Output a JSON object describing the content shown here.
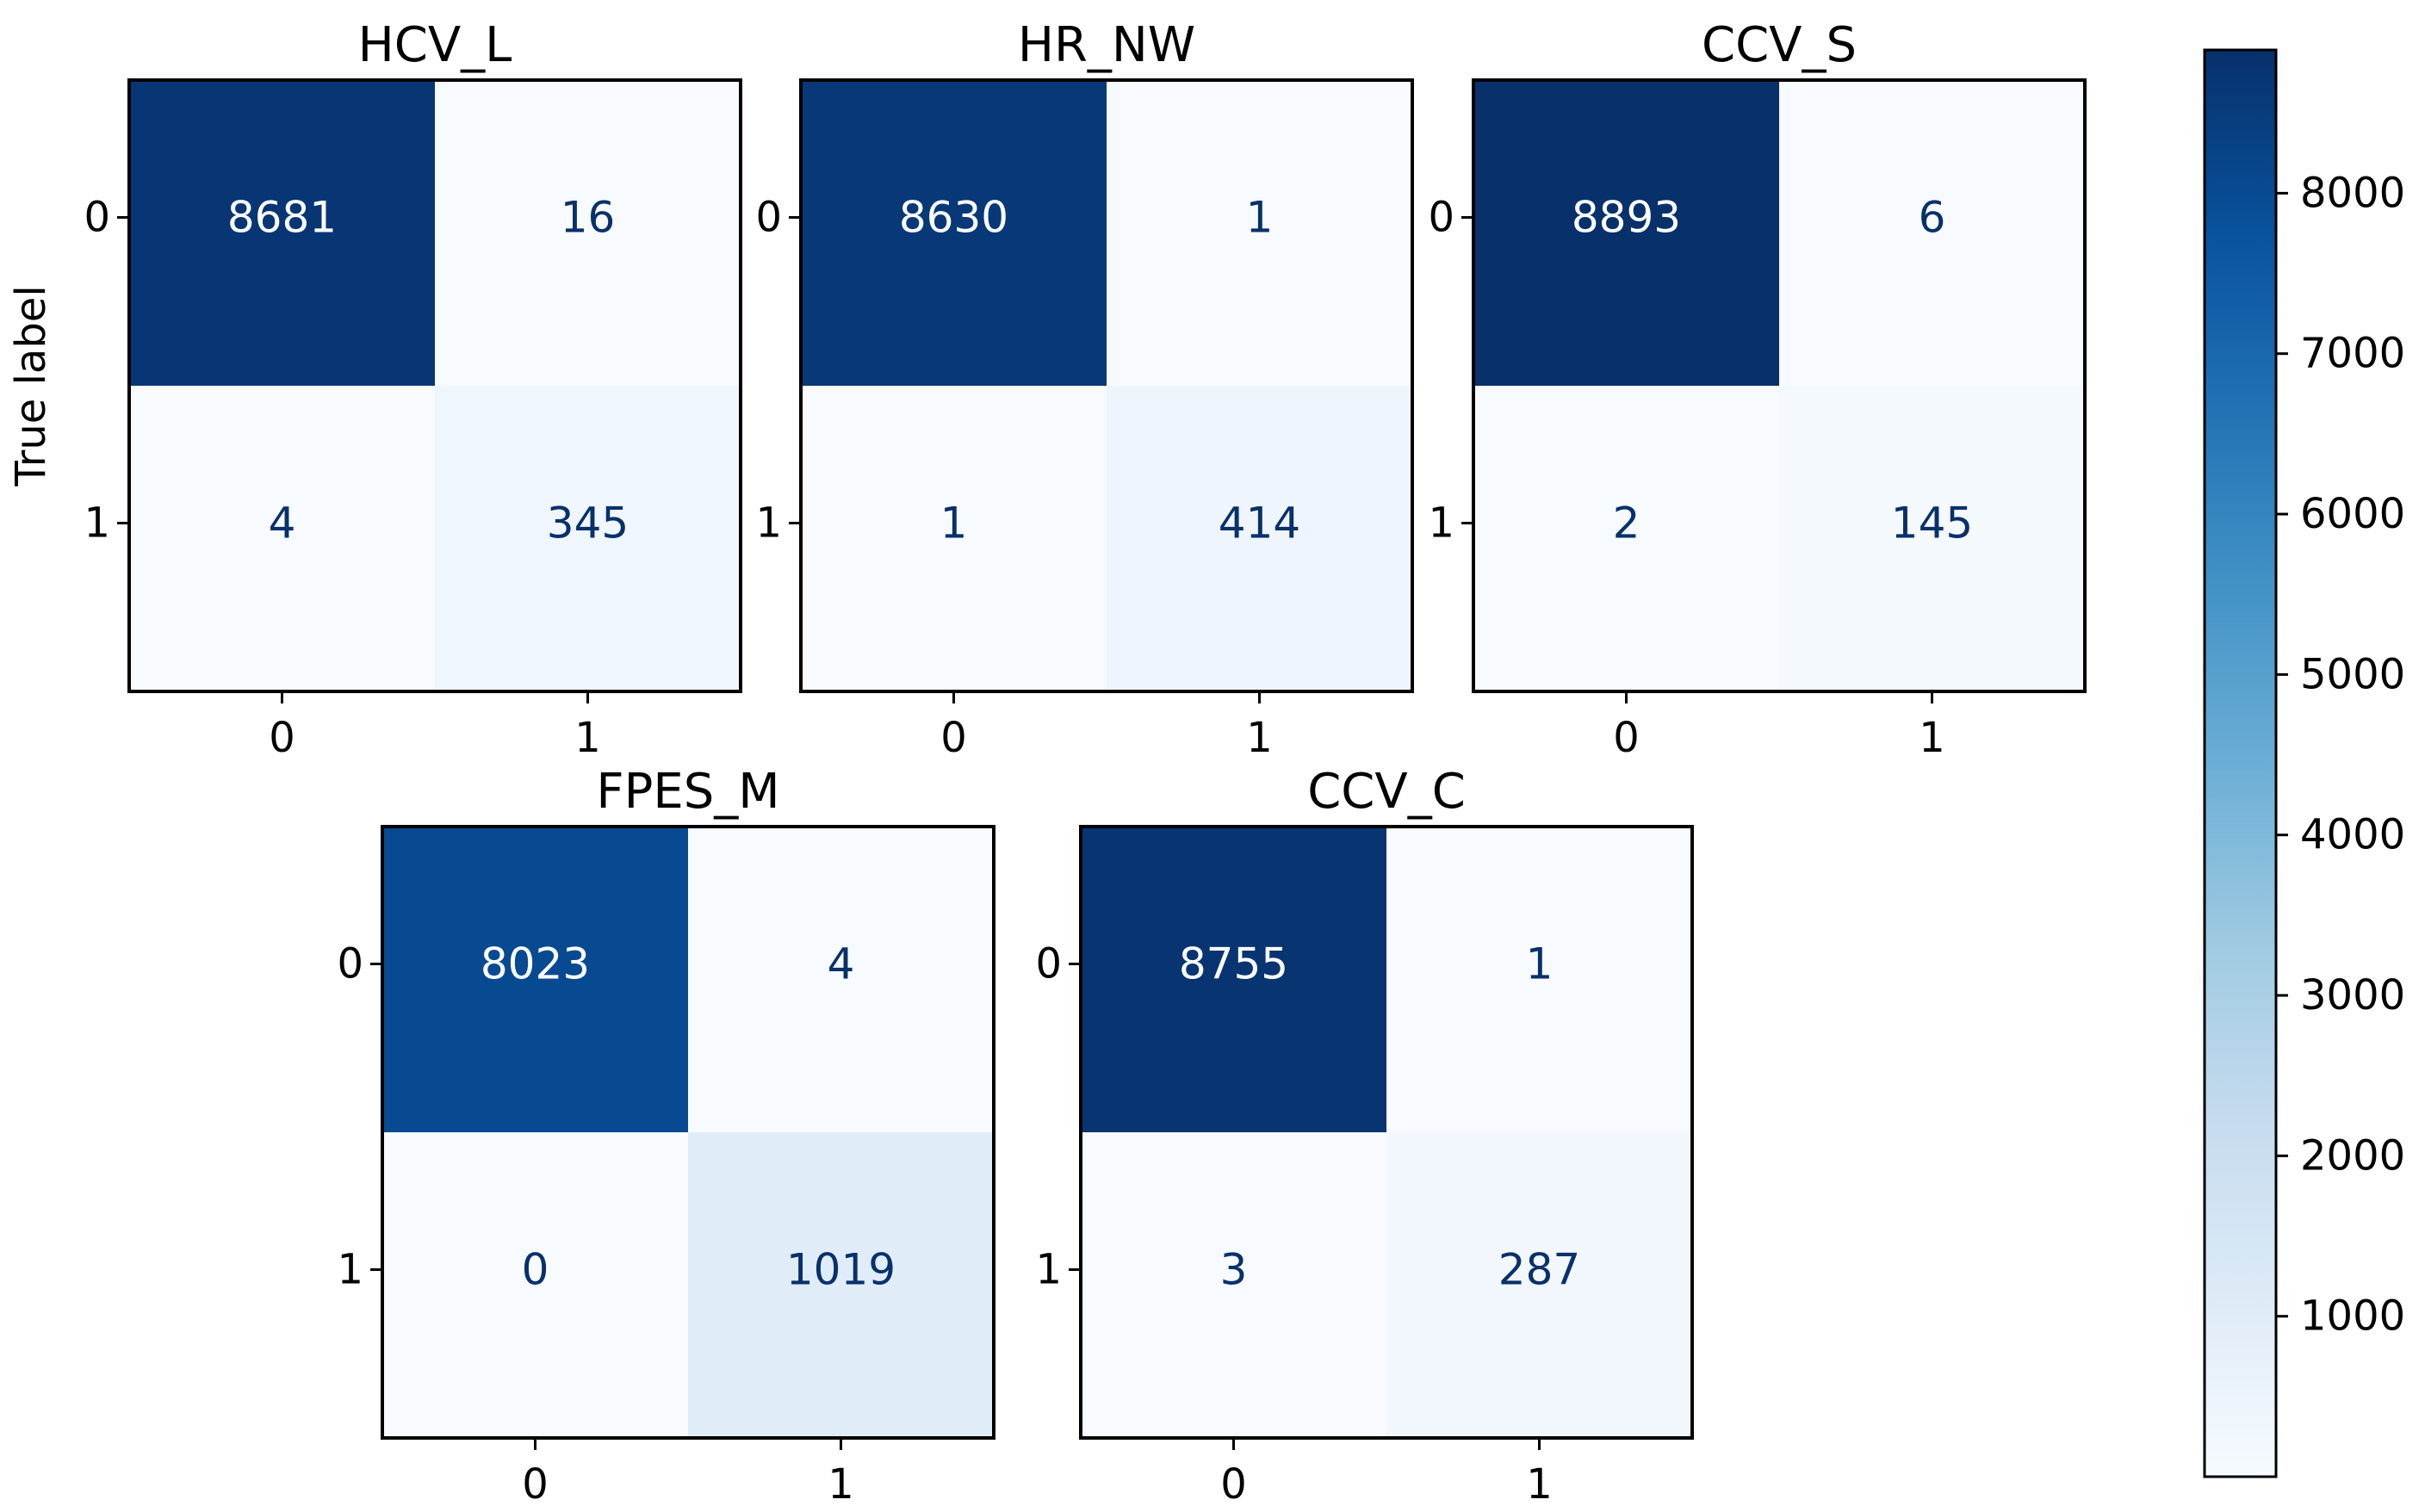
{
  "chart_data": {
    "type": "heatmap",
    "colormap": "Blues",
    "colorbar": {
      "ticks": [
        1000,
        2000,
        3000,
        4000,
        5000,
        6000,
        7000,
        8000
      ],
      "range": [
        0,
        8893
      ]
    },
    "ylabel": "True label",
    "panels": [
      {
        "title": "HCV_L",
        "x_ticks": [
          "0",
          "1"
        ],
        "y_ticks": [
          "0",
          "1"
        ],
        "matrix": [
          [
            8681,
            16
          ],
          [
            4,
            345
          ]
        ]
      },
      {
        "title": "HR_NW",
        "x_ticks": [
          "0",
          "1"
        ],
        "y_ticks": [
          "0",
          "1"
        ],
        "matrix": [
          [
            8630,
            1
          ],
          [
            1,
            414
          ]
        ]
      },
      {
        "title": "CCV_S",
        "x_ticks": [
          "0",
          "1"
        ],
        "y_ticks": [
          "0",
          "1"
        ],
        "matrix": [
          [
            8893,
            6
          ],
          [
            2,
            145
          ]
        ]
      },
      {
        "title": "FPES_M",
        "x_ticks": [
          "0",
          "1"
        ],
        "y_ticks": [
          "0",
          "1"
        ],
        "matrix": [
          [
            8023,
            4
          ],
          [
            0,
            1019
          ]
        ]
      },
      {
        "title": "CCV_C",
        "x_ticks": [
          "0",
          "1"
        ],
        "y_ticks": [
          "0",
          "1"
        ],
        "matrix": [
          [
            8755,
            1
          ],
          [
            3,
            287
          ]
        ]
      }
    ]
  }
}
